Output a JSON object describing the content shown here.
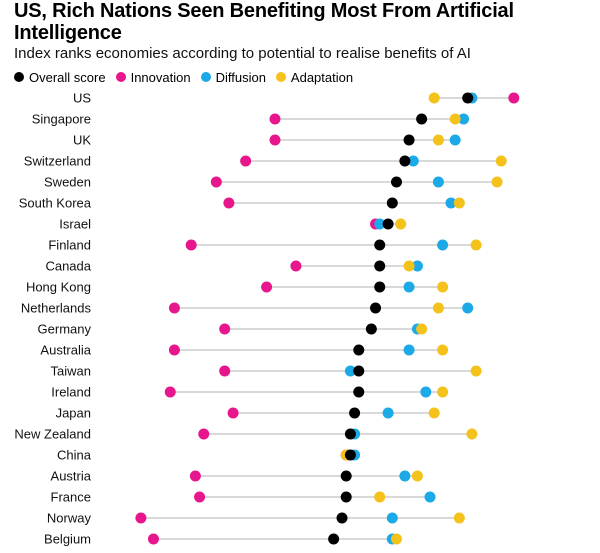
{
  "chart_data": {
    "type": "dot-plot",
    "title": "US, Rich Nations Seen Benefiting Most From Artificial Intelligence",
    "subtitle": "Index ranks economies according to potential to realise benefits of AI",
    "xlim": [
      0,
      100
    ],
    "series": [
      {
        "name": "Overall score",
        "color": "#000000",
        "key": "overall"
      },
      {
        "name": "Innovation",
        "color": "#e8168c",
        "key": "innovation"
      },
      {
        "name": "Diffusion",
        "color": "#1ba9e8",
        "key": "diffusion"
      },
      {
        "name": "Adaptation",
        "color": "#f5c21b",
        "key": "adaptation"
      }
    ],
    "categories": [
      "US",
      "Singapore",
      "UK",
      "Switzerland",
      "Sweden",
      "South Korea",
      "Israel",
      "Finland",
      "Canada",
      "Hong Kong",
      "Netherlands",
      "Germany",
      "Australia",
      "Taiwan",
      "Ireland",
      "Japan",
      "New Zealand",
      "China",
      "Austria",
      "France",
      "Norway",
      "Belgium"
    ],
    "values": {
      "overall": [
        88,
        77,
        74,
        73,
        71,
        70,
        69,
        67,
        67,
        67,
        66,
        65,
        62,
        62,
        62,
        61,
        60,
        60,
        59,
        59,
        58,
        56
      ],
      "innovation": [
        99,
        42,
        42,
        35,
        28,
        31,
        66,
        22,
        47,
        40,
        18,
        30,
        18,
        30,
        17,
        32,
        25,
        59,
        23,
        24,
        10,
        13
      ],
      "diffusion": [
        89,
        87,
        85,
        75,
        81,
        84,
        67,
        82,
        76,
        74,
        88,
        76,
        74,
        60,
        78,
        69,
        61,
        61,
        73,
        79,
        70,
        70
      ],
      "adaptation": [
        80,
        85,
        81,
        96,
        95,
        86,
        72,
        90,
        74,
        82,
        81,
        77,
        82,
        90,
        82,
        80,
        89,
        59,
        76,
        67,
        86,
        71
      ]
    }
  }
}
